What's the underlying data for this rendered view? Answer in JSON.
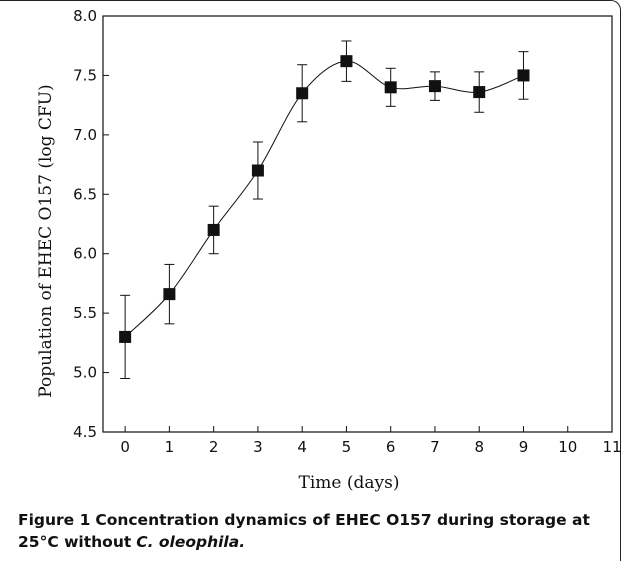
{
  "chart_data": {
    "type": "line",
    "title": "",
    "xlabel": "Time (days)",
    "ylabel": "Population of EHEC O157 (log CFU)",
    "xlim": [
      -0.5,
      11
    ],
    "ylim": [
      4.5,
      8.0
    ],
    "xticks": [
      0,
      1,
      2,
      3,
      4,
      5,
      6,
      7,
      8,
      9,
      10,
      11
    ],
    "yticks": [
      "4.5",
      "5.0",
      "5.5",
      "6.0",
      "6.5",
      "7.0",
      "7.5",
      "8.0"
    ],
    "grid": false,
    "marker": "square",
    "series": [
      {
        "x": [
          0,
          1,
          2,
          3,
          4,
          5,
          6,
          7,
          8,
          9
        ],
        "values": [
          5.3,
          5.66,
          6.2,
          6.7,
          7.35,
          7.62,
          7.4,
          7.41,
          7.36,
          7.5
        ],
        "error": [
          0.35,
          0.25,
          0.2,
          0.24,
          0.24,
          0.17,
          0.16,
          0.12,
          0.17,
          0.2
        ]
      }
    ]
  },
  "caption": {
    "label": "Figure 1",
    "title_part1": "Concentration dynamics of EHEC O157 during storage at 25°C without",
    "organism": "C. oleophila.",
    "title_part2": ""
  }
}
